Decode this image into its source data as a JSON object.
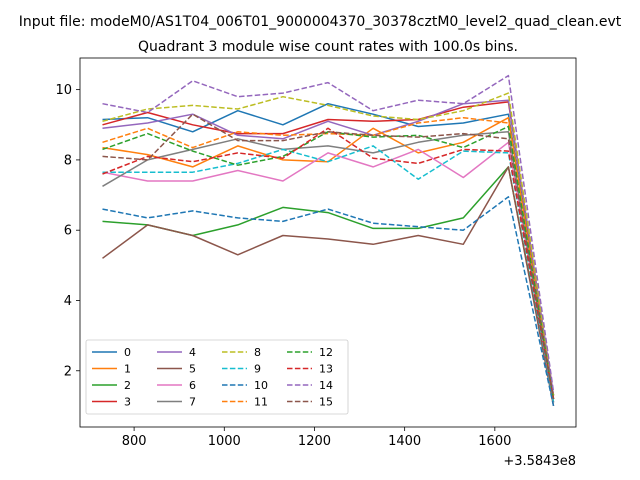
{
  "header": {
    "suptitle": "Input file: modeM0/AS1T04_006T01_9000004370_30378cztM0_level2_quad_clean.evt",
    "title": "Quadrant 3 module wise count rates with 100.0s bins."
  },
  "chart_data": {
    "type": "line",
    "x": [
      730,
      830,
      930,
      1030,
      1130,
      1230,
      1330,
      1430,
      1530,
      1630,
      1730
    ],
    "x_offset_label": "+3.5843e8",
    "xlim": [
      680,
      1780
    ],
    "ylim": [
      0.4,
      10.9
    ],
    "xticks": [
      800,
      1000,
      1200,
      1400,
      1600
    ],
    "yticks": [
      2,
      4,
      6,
      8,
      10
    ],
    "grid": false,
    "legend_position": "lower-left",
    "series": [
      {
        "name": "0",
        "style": "solid",
        "color": "#1f77b4",
        "values": [
          9.15,
          9.2,
          8.8,
          9.4,
          9.0,
          9.6,
          9.3,
          8.95,
          9.05,
          9.3,
          1.2
        ]
      },
      {
        "name": "1",
        "style": "solid",
        "color": "#ff7f0e",
        "values": [
          8.35,
          8.15,
          7.8,
          8.4,
          8.0,
          7.95,
          8.9,
          8.2,
          8.5,
          9.2,
          1.2
        ]
      },
      {
        "name": "2",
        "style": "solid",
        "color": "#2ca02c",
        "values": [
          6.25,
          6.15,
          5.85,
          6.15,
          6.65,
          6.5,
          6.05,
          6.05,
          6.35,
          7.8,
          1.1
        ]
      },
      {
        "name": "3",
        "style": "solid",
        "color": "#d62728",
        "values": [
          9.0,
          9.35,
          9.0,
          8.75,
          8.75,
          9.15,
          9.1,
          9.15,
          9.5,
          9.65,
          1.3
        ]
      },
      {
        "name": "4",
        "style": "solid",
        "color": "#9467bd",
        "values": [
          8.9,
          9.05,
          9.3,
          8.7,
          8.6,
          9.1,
          8.7,
          9.1,
          9.6,
          9.7,
          1.3
        ]
      },
      {
        "name": "5",
        "style": "solid",
        "color": "#8c564b",
        "values": [
          5.2,
          6.15,
          5.85,
          5.3,
          5.85,
          5.75,
          5.6,
          5.85,
          5.6,
          7.8,
          1.0
        ]
      },
      {
        "name": "6",
        "style": "solid",
        "color": "#e377c2",
        "values": [
          7.65,
          7.4,
          7.4,
          7.7,
          7.4,
          8.2,
          7.8,
          8.3,
          7.5,
          8.5,
          1.1
        ]
      },
      {
        "name": "7",
        "style": "solid",
        "color": "#7f7f7f",
        "values": [
          7.25,
          8.0,
          8.3,
          8.6,
          8.3,
          8.4,
          8.2,
          8.5,
          8.7,
          8.8,
          1.1
        ]
      },
      {
        "name": "8",
        "style": "dashed",
        "color": "#bcbd22",
        "values": [
          9.1,
          9.45,
          9.55,
          9.45,
          9.8,
          9.55,
          9.25,
          9.15,
          9.4,
          9.9,
          1.3
        ]
      },
      {
        "name": "9",
        "style": "dashed",
        "color": "#17becf",
        "values": [
          7.65,
          7.65,
          7.65,
          7.9,
          8.3,
          7.95,
          8.4,
          7.45,
          8.25,
          8.2,
          1.1
        ]
      },
      {
        "name": "10",
        "style": "dashed",
        "color": "#1f77b4",
        "values": [
          6.6,
          6.35,
          6.55,
          6.35,
          6.25,
          6.6,
          6.2,
          6.1,
          6.0,
          6.95,
          1.0
        ]
      },
      {
        "name": "11",
        "style": "dashed",
        "color": "#ff7f0e",
        "values": [
          8.5,
          8.9,
          8.35,
          8.8,
          8.7,
          8.75,
          8.7,
          9.05,
          9.2,
          9.05,
          1.2
        ]
      },
      {
        "name": "12",
        "style": "dashed",
        "color": "#2ca02c",
        "values": [
          8.3,
          8.75,
          8.25,
          7.85,
          8.1,
          8.8,
          8.65,
          8.7,
          8.35,
          8.95,
          1.2
        ]
      },
      {
        "name": "13",
        "style": "dashed",
        "color": "#d62728",
        "values": [
          7.6,
          8.1,
          7.95,
          8.2,
          8.05,
          8.9,
          8.05,
          7.9,
          8.3,
          8.25,
          1.2
        ]
      },
      {
        "name": "14",
        "style": "dashed",
        "color": "#9467bd",
        "values": [
          9.6,
          9.35,
          10.25,
          9.8,
          9.9,
          10.2,
          9.4,
          9.7,
          9.6,
          10.4,
          1.4
        ]
      },
      {
        "name": "15",
        "style": "dashed",
        "color": "#8c564b",
        "values": [
          8.1,
          8.0,
          9.3,
          8.55,
          8.55,
          8.8,
          8.7,
          8.65,
          8.75,
          8.6,
          1.2
        ]
      }
    ]
  }
}
